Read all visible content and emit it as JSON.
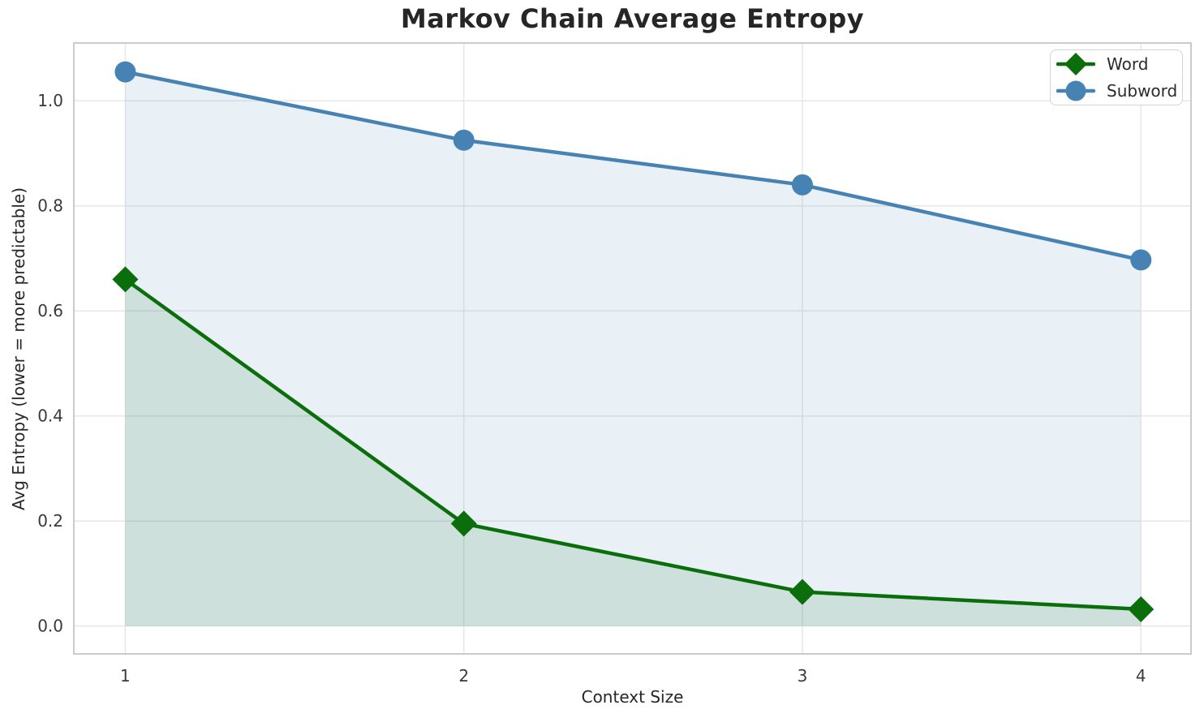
{
  "chart_data": {
    "type": "line",
    "title": "Markov Chain Average Entropy",
    "xlabel": "Context Size",
    "ylabel": "Avg Entropy (lower = more predictable)",
    "x": [
      1,
      2,
      3,
      4
    ],
    "series": [
      {
        "name": "Word",
        "values": [
          0.66,
          0.195,
          0.065,
          0.032
        ],
        "color": "#0a6e0a",
        "marker": "diamond"
      },
      {
        "name": "Subword",
        "values": [
          1.055,
          0.925,
          0.84,
          0.697
        ],
        "color": "#4682b4",
        "marker": "circle"
      }
    ],
    "fill_to_zero": true,
    "fill_alpha": 0.12,
    "xlim": [
      0.848,
      4.148
    ],
    "ylim": [
      -0.053,
      1.11
    ],
    "xticks": [
      1,
      2,
      3,
      4
    ],
    "xtick_labels": [
      "1",
      "2",
      "3",
      "4"
    ],
    "yticks": [
      0.0,
      0.2,
      0.4,
      0.6,
      0.8,
      1.0
    ],
    "ytick_labels": [
      "0.0",
      "0.2",
      "0.4",
      "0.6",
      "0.8",
      "1.0"
    ],
    "grid": true,
    "legend_position": "top-right",
    "style": {
      "grid_color": "#e7e7e7",
      "spine_color": "#cbcbcb",
      "tick_label_color": "#3a3a3a",
      "background": "#ffffff",
      "line_width": 4.5
    }
  }
}
